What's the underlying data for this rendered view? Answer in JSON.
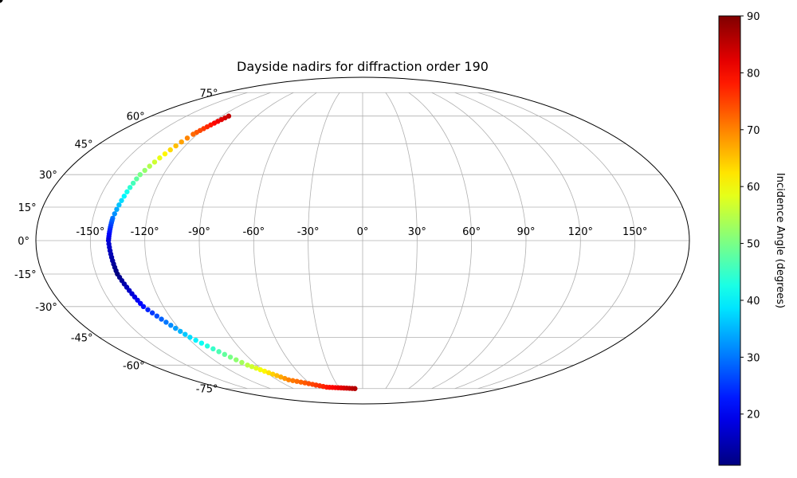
{
  "chart_data": {
    "type": "scatter",
    "projection": "mollweide",
    "title": "Dayside nadirs for diffraction order 190",
    "xlabel": "",
    "ylabel": "",
    "grid": true,
    "lon_tick_labels": [
      "-150°",
      "-120°",
      "-90°",
      "-60°",
      "-30°",
      "0°",
      "30°",
      "60°",
      "90°",
      "120°",
      "150°"
    ],
    "lat_tick_labels": [
      "75°",
      "60°",
      "45°",
      "30°",
      "15°",
      "0°",
      "-15°",
      "-30°",
      "-45°",
      "-60°",
      "-75°"
    ],
    "colorbar": {
      "label": "Incidence Angle (degrees)",
      "colormap": "jet",
      "vmin": 11,
      "vmax": 90,
      "tick_labels": [
        "20",
        "30",
        "40",
        "50",
        "60",
        "70",
        "80",
        "90"
      ]
    },
    "series": [
      {
        "points": [
          [
            -114,
            60,
            85
          ],
          [
            -123,
            50,
            72
          ],
          [
            -134,
            30,
            50
          ],
          [
            -139,
            10,
            30
          ],
          [
            -140,
            0,
            18
          ],
          [
            -138,
            -15,
            11
          ],
          [
            -132,
            -30,
            22
          ],
          [
            -118,
            -45,
            38
          ],
          [
            -98,
            -60,
            55
          ],
          [
            -78,
            -69,
            70
          ],
          [
            -45,
            -74,
            78
          ],
          [
            -10,
            -75,
            86
          ]
        ]
      },
      {
        "points": [
          -92,
          -75,
          88
        ]
      }
    ]
  }
}
